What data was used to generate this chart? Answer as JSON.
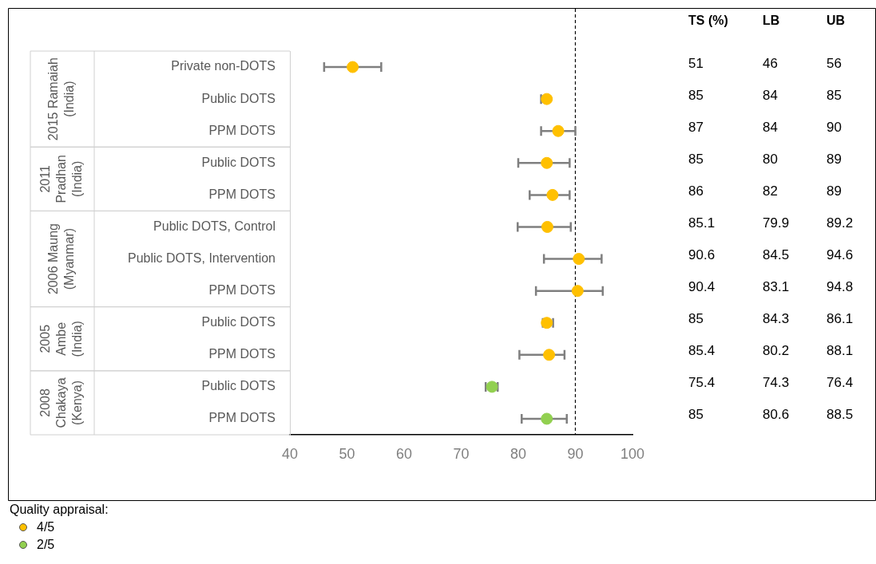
{
  "chart_data": [
    {
      "type": "scatter",
      "orientation": "horizontal",
      "categories": [
        "Private non-DOTS",
        "Public DOTS",
        "PPM DOTS",
        "Public DOTS",
        "PPM DOTS",
        "Public DOTS, Control",
        "Public DOTS, Intervention",
        "PPM DOTS",
        "Public DOTS",
        "PPM DOTS",
        "Public DOTS",
        "PPM DOTS"
      ],
      "series": [
        {
          "name": "4/5",
          "color": "#ffc000",
          "values": [
            51,
            85,
            87,
            85,
            86,
            85.1,
            90.6,
            90.4,
            85,
            85.4,
            null,
            null
          ],
          "errors": [
            [
              46,
              56
            ],
            [
              84,
              85
            ],
            [
              84,
              90
            ],
            [
              80,
              89
            ],
            [
              82,
              89
            ],
            [
              79.9,
              89.2
            ],
            [
              84.5,
              94.6
            ],
            [
              83.1,
              94.8
            ],
            [
              84.3,
              86.1
            ],
            [
              80.2,
              88.1
            ],
            null,
            null
          ]
        },
        {
          "name": "2/5",
          "color": "#92d050",
          "values": [
            null,
            null,
            null,
            null,
            null,
            null,
            null,
            null,
            null,
            null,
            75.4,
            85
          ],
          "errors": [
            null,
            null,
            null,
            null,
            null,
            null,
            null,
            null,
            null,
            null,
            [
              74.3,
              76.4
            ],
            [
              80.6,
              88.5
            ]
          ]
        }
      ],
      "xlim": [
        40,
        100
      ],
      "xticks": [
        40,
        50,
        60,
        70,
        80,
        90,
        100
      ],
      "ref_lines": [
        {
          "axis": "x",
          "value": 90,
          "line_style": "dashed"
        }
      ],
      "annotations": [
        "2015 Ramaiah (India)",
        "2011 Pradhan (India)",
        "2006 Maung (Myanmar)",
        "2005 Ambe (India)",
        "2008 Chakaya (Kenya)"
      ],
      "grid": false,
      "marker": "circle",
      "legend": "bottom left",
      "legend_title": "Quality appraisal:"
    },
    {
      "type": "other",
      "annotations": [
        "TS (%)",
        "LB",
        "UB",
        "51",
        "46",
        "56",
        "85",
        "84",
        "85",
        "87",
        "84",
        "90",
        "85",
        "80",
        "89",
        "86",
        "82",
        "89",
        "85.1",
        "79.9",
        "89.2",
        "90.6",
        "84.5",
        "94.6",
        "90.4",
        "83.1",
        "94.8",
        "85",
        "84.3",
        "86.1",
        "85.4",
        "80.2",
        "88.1",
        "75.4",
        "74.3",
        "76.4",
        "85",
        "80.6",
        "88.5"
      ]
    }
  ]
}
